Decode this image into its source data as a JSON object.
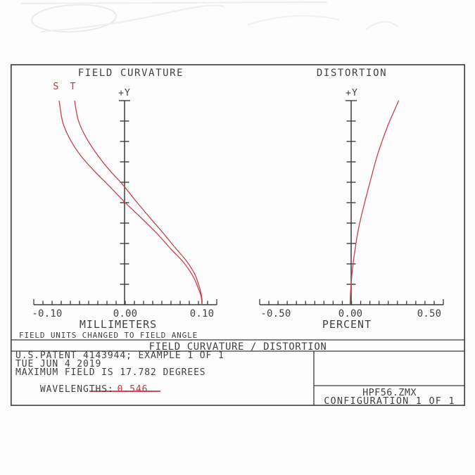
{
  "header": {
    "title": "FIELD CURVATURE / DISTORTION"
  },
  "notes": {
    "field_units": "FIELD UNITS CHANGED TO FIELD ANGLE"
  },
  "info": {
    "line1": "U.S.PATENT 4143944; EXAMPLE 1 OF 1",
    "line2": "TUE JUN 4 2019",
    "line3": "MAXIMUM FIELD IS 17.782 DEGREES",
    "wavelengths_label": "WAVELENGTHS:",
    "wavelengths_value": "0.546"
  },
  "footer": {
    "file_name": "HPF56.ZMX",
    "configuration": "CONFIGURATION 1 OF 1"
  },
  "colors": {
    "curve": "#c7424a",
    "axis": "#3c3c3c",
    "text": "#414141",
    "red_text": "#c53440",
    "background": "#ffffff"
  },
  "chart_data": [
    {
      "type": "line",
      "title": "FIELD CURVATURE",
      "xlabel": "MILLIMETERS",
      "ylabel": "+Y",
      "xlim": [
        -0.1,
        0.1
      ],
      "ylim": [
        0,
        1
      ],
      "x_tick_labels": [
        "-0.10",
        "0.00",
        "0.10"
      ],
      "grid": false,
      "legend_position": "top-left",
      "series": [
        {
          "name": "S",
          "points": [
            [
              -0.0715,
              1.0
            ],
            [
              -0.0677,
              0.897
            ],
            [
              -0.06,
              0.814
            ],
            [
              -0.0485,
              0.734
            ],
            [
              -0.0331,
              0.655
            ],
            [
              -0.0162,
              0.579
            ],
            [
              0.0,
              0.503
            ],
            [
              0.0185,
              0.424
            ],
            [
              0.0362,
              0.345
            ],
            [
              0.0515,
              0.269
            ],
            [
              0.0646,
              0.207
            ],
            [
              0.0746,
              0.141
            ],
            [
              0.0808,
              0.079
            ],
            [
              0.0838,
              0.038
            ],
            [
              0.0846,
              0.003
            ]
          ]
        },
        {
          "name": "T",
          "points": [
            [
              -0.0546,
              1.0
            ],
            [
              -0.0508,
              0.907
            ],
            [
              -0.0431,
              0.828
            ],
            [
              -0.0315,
              0.745
            ],
            [
              -0.0177,
              0.666
            ],
            [
              -0.0023,
              0.59
            ],
            [
              0.0108,
              0.517
            ],
            [
              0.0262,
              0.434
            ],
            [
              0.0415,
              0.355
            ],
            [
              0.0554,
              0.279
            ],
            [
              0.0677,
              0.214
            ],
            [
              0.0769,
              0.148
            ],
            [
              0.0823,
              0.079
            ],
            [
              0.0846,
              0.028
            ],
            [
              0.0846,
              0.003
            ]
          ]
        }
      ]
    },
    {
      "type": "line",
      "title": "DISTORTION",
      "xlabel": "PERCENT",
      "ylabel": "+Y",
      "xlim": [
        -0.5,
        0.5
      ],
      "ylim": [
        0,
        1
      ],
      "x_tick_labels": [
        "-0.50",
        "0.00",
        "0.50"
      ],
      "grid": false,
      "series": [
        {
          "name": "distortion",
          "points": [
            [
              -0.006,
              0.0
            ],
            [
              -0.002,
              0.079
            ],
            [
              0.006,
              0.166
            ],
            [
              0.021,
              0.269
            ],
            [
              0.04,
              0.372
            ],
            [
              0.067,
              0.476
            ],
            [
              0.102,
              0.597
            ],
            [
              0.144,
              0.734
            ],
            [
              0.198,
              0.872
            ],
            [
              0.26,
              1.0
            ]
          ]
        }
      ]
    }
  ]
}
